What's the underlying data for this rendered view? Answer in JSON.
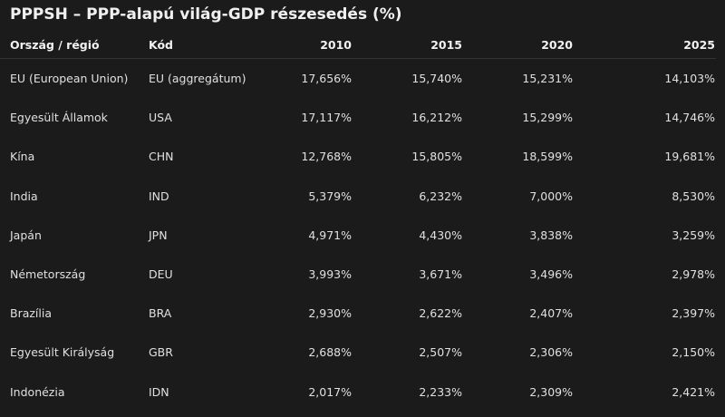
{
  "title": "PPPSH – PPP-alapú világ-GDP részesedés (%)",
  "columns": [
    "Ország / régió",
    "Kód",
    "2010",
    "2015",
    "2020",
    "2025"
  ],
  "rows": [
    [
      "EU (European Union)",
      "EU (aggregátum)",
      "17,656%",
      "15,740%",
      "15,231%",
      "14,103%"
    ],
    [
      "Egyesült Államok",
      "USA",
      "17,117%",
      "16,212%",
      "15,299%",
      "14,746%"
    ],
    [
      "Kína",
      "CHN",
      "12,768%",
      "15,805%",
      "18,599%",
      "19,681%"
    ],
    [
      "India",
      "IND",
      "5,379%",
      "6,232%",
      "7,000%",
      "8,530%"
    ],
    [
      "Japán",
      "JPN",
      "4,971%",
      "4,430%",
      "3,838%",
      "3,259%"
    ],
    [
      "Németország",
      "DEU",
      "3,993%",
      "3,671%",
      "3,496%",
      "2,978%"
    ],
    [
      "Brazília",
      "BRA",
      "2,930%",
      "2,622%",
      "2,407%",
      "2,397%"
    ],
    [
      "Egyesült Királyság",
      "GBR",
      "2,688%",
      "2,507%",
      "2,306%",
      "2,150%"
    ],
    [
      "Indonézia",
      "IDN",
      "2,017%",
      "2,233%",
      "2,309%",
      "2,421%"
    ]
  ]
}
